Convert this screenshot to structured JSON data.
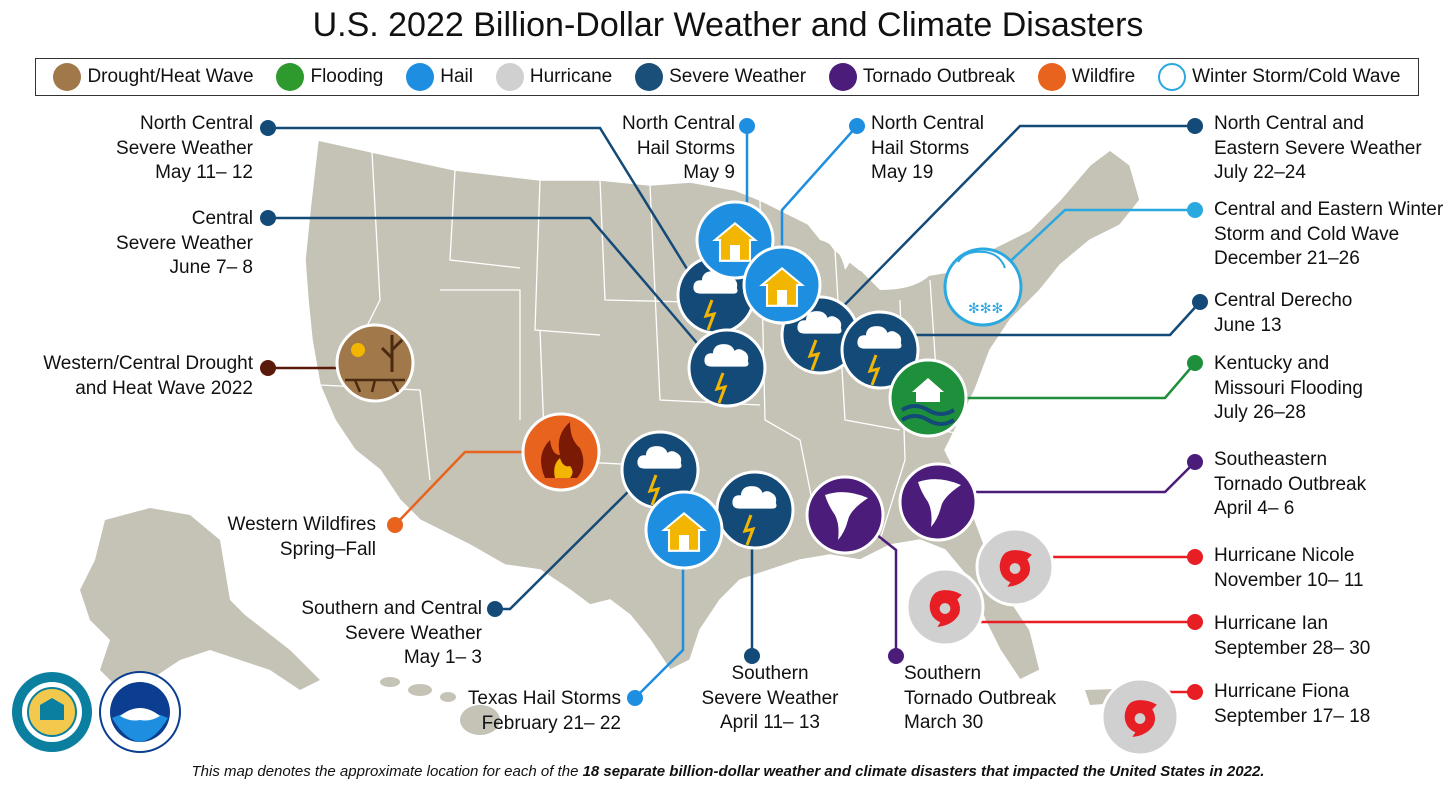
{
  "title": "U.S. 2022 Billion-Dollar Weather and Climate Disasters",
  "legend": [
    {
      "label": "Drought/Heat Wave",
      "icon": "drought-icon",
      "color": "#a0784a"
    },
    {
      "label": "Flooding",
      "icon": "flood-icon",
      "color": "#2e9a2e"
    },
    {
      "label": "Hail",
      "icon": "hail-icon",
      "color": "#1e8fe0"
    },
    {
      "label": "Hurricane",
      "icon": "hurricane-icon",
      "color": "#d0d0d0"
    },
    {
      "label": "Severe Weather",
      "icon": "severe-weather-icon",
      "color": "#1a4f7a"
    },
    {
      "label": "Tornado Outbreak",
      "icon": "tornado-icon",
      "color": "#4b1c7a"
    },
    {
      "label": "Wildfire",
      "icon": "wildfire-icon",
      "color": "#e8641e"
    },
    {
      "label": "Winter Storm/Cold Wave",
      "icon": "winter-storm-icon",
      "color": "#ffffff"
    }
  ],
  "events": {
    "nc_severe_may": [
      "North Central",
      "Severe Weather",
      "May 11– 12"
    ],
    "central_severe_june": [
      "Central",
      "Severe Weather",
      "June 7– 8"
    ],
    "western_drought": [
      "Western/Central Drought",
      "and Heat Wave 2022"
    ],
    "western_wildfires": [
      "Western Wildfires",
      "Spring–Fall"
    ],
    "southern_central_severe": [
      "Southern and Central",
      "Severe Weather",
      "May 1– 3"
    ],
    "texas_hail": [
      "Texas Hail Storms",
      "February 21– 22"
    ],
    "southern_severe": [
      "Southern",
      "Severe Weather",
      "April 11– 13"
    ],
    "southern_tornado": [
      "Southern",
      "Tornado Outbreak",
      "March 30"
    ],
    "nc_hail_may9": [
      "North Central",
      "Hail Storms",
      "May 9"
    ],
    "nc_hail_may19": [
      "North Central",
      "Hail Storms",
      "May 19"
    ],
    "nce_severe_july": [
      "North Central and",
      "Eastern Severe Weather",
      "July 22–24"
    ],
    "ce_winter": [
      "Central and Eastern Winter",
      "Storm and Cold Wave",
      "December 21–26"
    ],
    "central_derecho": [
      "Central Derecho",
      "June 13"
    ],
    "ky_mo_flood": [
      "Kentucky and",
      "Missouri Flooding",
      "July 26–28"
    ],
    "se_tornado": [
      "Southeastern",
      "Tornado Outbreak",
      "April 4– 6"
    ],
    "nicole": [
      "Hurricane Nicole",
      "November 10– 11"
    ],
    "ian": [
      "Hurricane Ian",
      "September 28– 30"
    ],
    "fiona": [
      "Hurricane Fiona",
      "September 17– 18"
    ]
  },
  "footnote": {
    "prefix": "This map denotes the approximate location for each of the ",
    "bold": "18 separate billion-dollar weather and climate disasters that impacted the United States in 2022.",
    "suffix": ""
  },
  "logos": {
    "commerce": "DEPARTMENT OF COMMERCE · UNITED STATES OF AMERICA",
    "noaa": "NOAA"
  },
  "colors": {
    "land": "#c5c2b6",
    "severe": "#134a78",
    "hail": "#1e8fe0",
    "tornado": "#4b1c7a",
    "hurricane_line": "#e81e25",
    "flood": "#1e8f3a",
    "winter": "#2aa8e0",
    "drought_line": "#5a1a0a",
    "wildfire": "#e8641e"
  }
}
